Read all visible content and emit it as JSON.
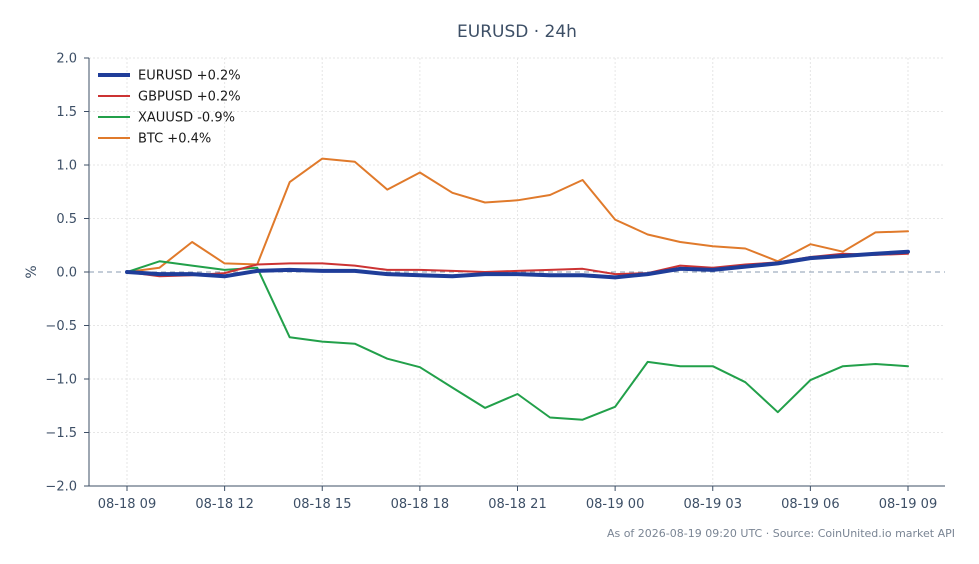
{
  "chart_data": {
    "type": "line",
    "title": "EURUSD · 24h",
    "xlabel": "",
    "ylabel": "%",
    "ylim": [
      -2.0,
      2.0
    ],
    "yticks": [
      2.0,
      1.5,
      1.0,
      0.5,
      0.0,
      -0.5,
      -1.0,
      -1.5,
      -2.0
    ],
    "ytick_labels": [
      "2.0",
      "1.5",
      "1.0",
      "0.5",
      "0.0",
      "−0.5",
      "−1.0",
      "−1.5",
      "−2.0"
    ],
    "x": [
      "08-18 09",
      "08-18 10",
      "08-18 11",
      "08-18 12",
      "08-18 13",
      "08-18 14",
      "08-18 15",
      "08-18 16",
      "08-18 17",
      "08-18 18",
      "08-18 19",
      "08-18 20",
      "08-18 21",
      "08-18 22",
      "08-18 23",
      "08-19 00",
      "08-19 01",
      "08-19 02",
      "08-19 03",
      "08-19 04",
      "08-19 05",
      "08-19 06",
      "08-19 07",
      "08-19 08",
      "08-19 09"
    ],
    "xticks": [
      "08-18 09",
      "08-18 12",
      "08-18 15",
      "08-18 18",
      "08-18 21",
      "08-19 00",
      "08-19 03",
      "08-19 06",
      "08-19 09"
    ],
    "grid": true,
    "legend_position": "top-left",
    "series": [
      {
        "name": "EURUSD +0.2%",
        "color": "#1f3d99",
        "width": 4,
        "values": [
          0.0,
          -0.02,
          -0.02,
          -0.04,
          0.01,
          0.02,
          0.01,
          0.01,
          -0.02,
          -0.03,
          -0.04,
          -0.02,
          -0.02,
          -0.03,
          -0.03,
          -0.05,
          -0.02,
          0.03,
          0.02,
          0.05,
          0.08,
          0.13,
          0.15,
          0.17,
          0.19
        ]
      },
      {
        "name": "GBPUSD +0.2%",
        "color": "#cc3333",
        "width": 2,
        "values": [
          0.0,
          -0.04,
          -0.03,
          -0.01,
          0.07,
          0.08,
          0.08,
          0.06,
          0.02,
          0.02,
          0.01,
          0.0,
          0.01,
          0.02,
          0.03,
          -0.02,
          -0.01,
          0.06,
          0.04,
          0.07,
          0.09,
          0.14,
          0.17,
          0.16,
          0.17
        ]
      },
      {
        "name": "XAUUSD -0.9%",
        "color": "#22a04a",
        "width": 2,
        "values": [
          0.0,
          0.1,
          0.06,
          0.02,
          0.04,
          -0.61,
          -0.65,
          -0.67,
          -0.81,
          -0.89,
          -1.08,
          -1.27,
          -1.14,
          -1.36,
          -1.38,
          -1.26,
          -0.84,
          -0.88,
          -0.88,
          -1.03,
          -1.31,
          -1.01,
          -0.88,
          -0.86,
          -0.88
        ]
      },
      {
        "name": "BTC +0.4%",
        "color": "#e07a2b",
        "width": 2,
        "values": [
          0.0,
          0.04,
          0.28,
          0.08,
          0.07,
          0.84,
          1.06,
          1.03,
          0.77,
          0.93,
          0.74,
          0.65,
          0.67,
          0.72,
          0.86,
          0.49,
          0.35,
          0.28,
          0.24,
          0.22,
          0.1,
          0.26,
          0.19,
          0.37,
          0.38
        ]
      }
    ],
    "footer": "As of 2026-08-19 09:20 UTC · Source: CoinUnited.io market API"
  }
}
